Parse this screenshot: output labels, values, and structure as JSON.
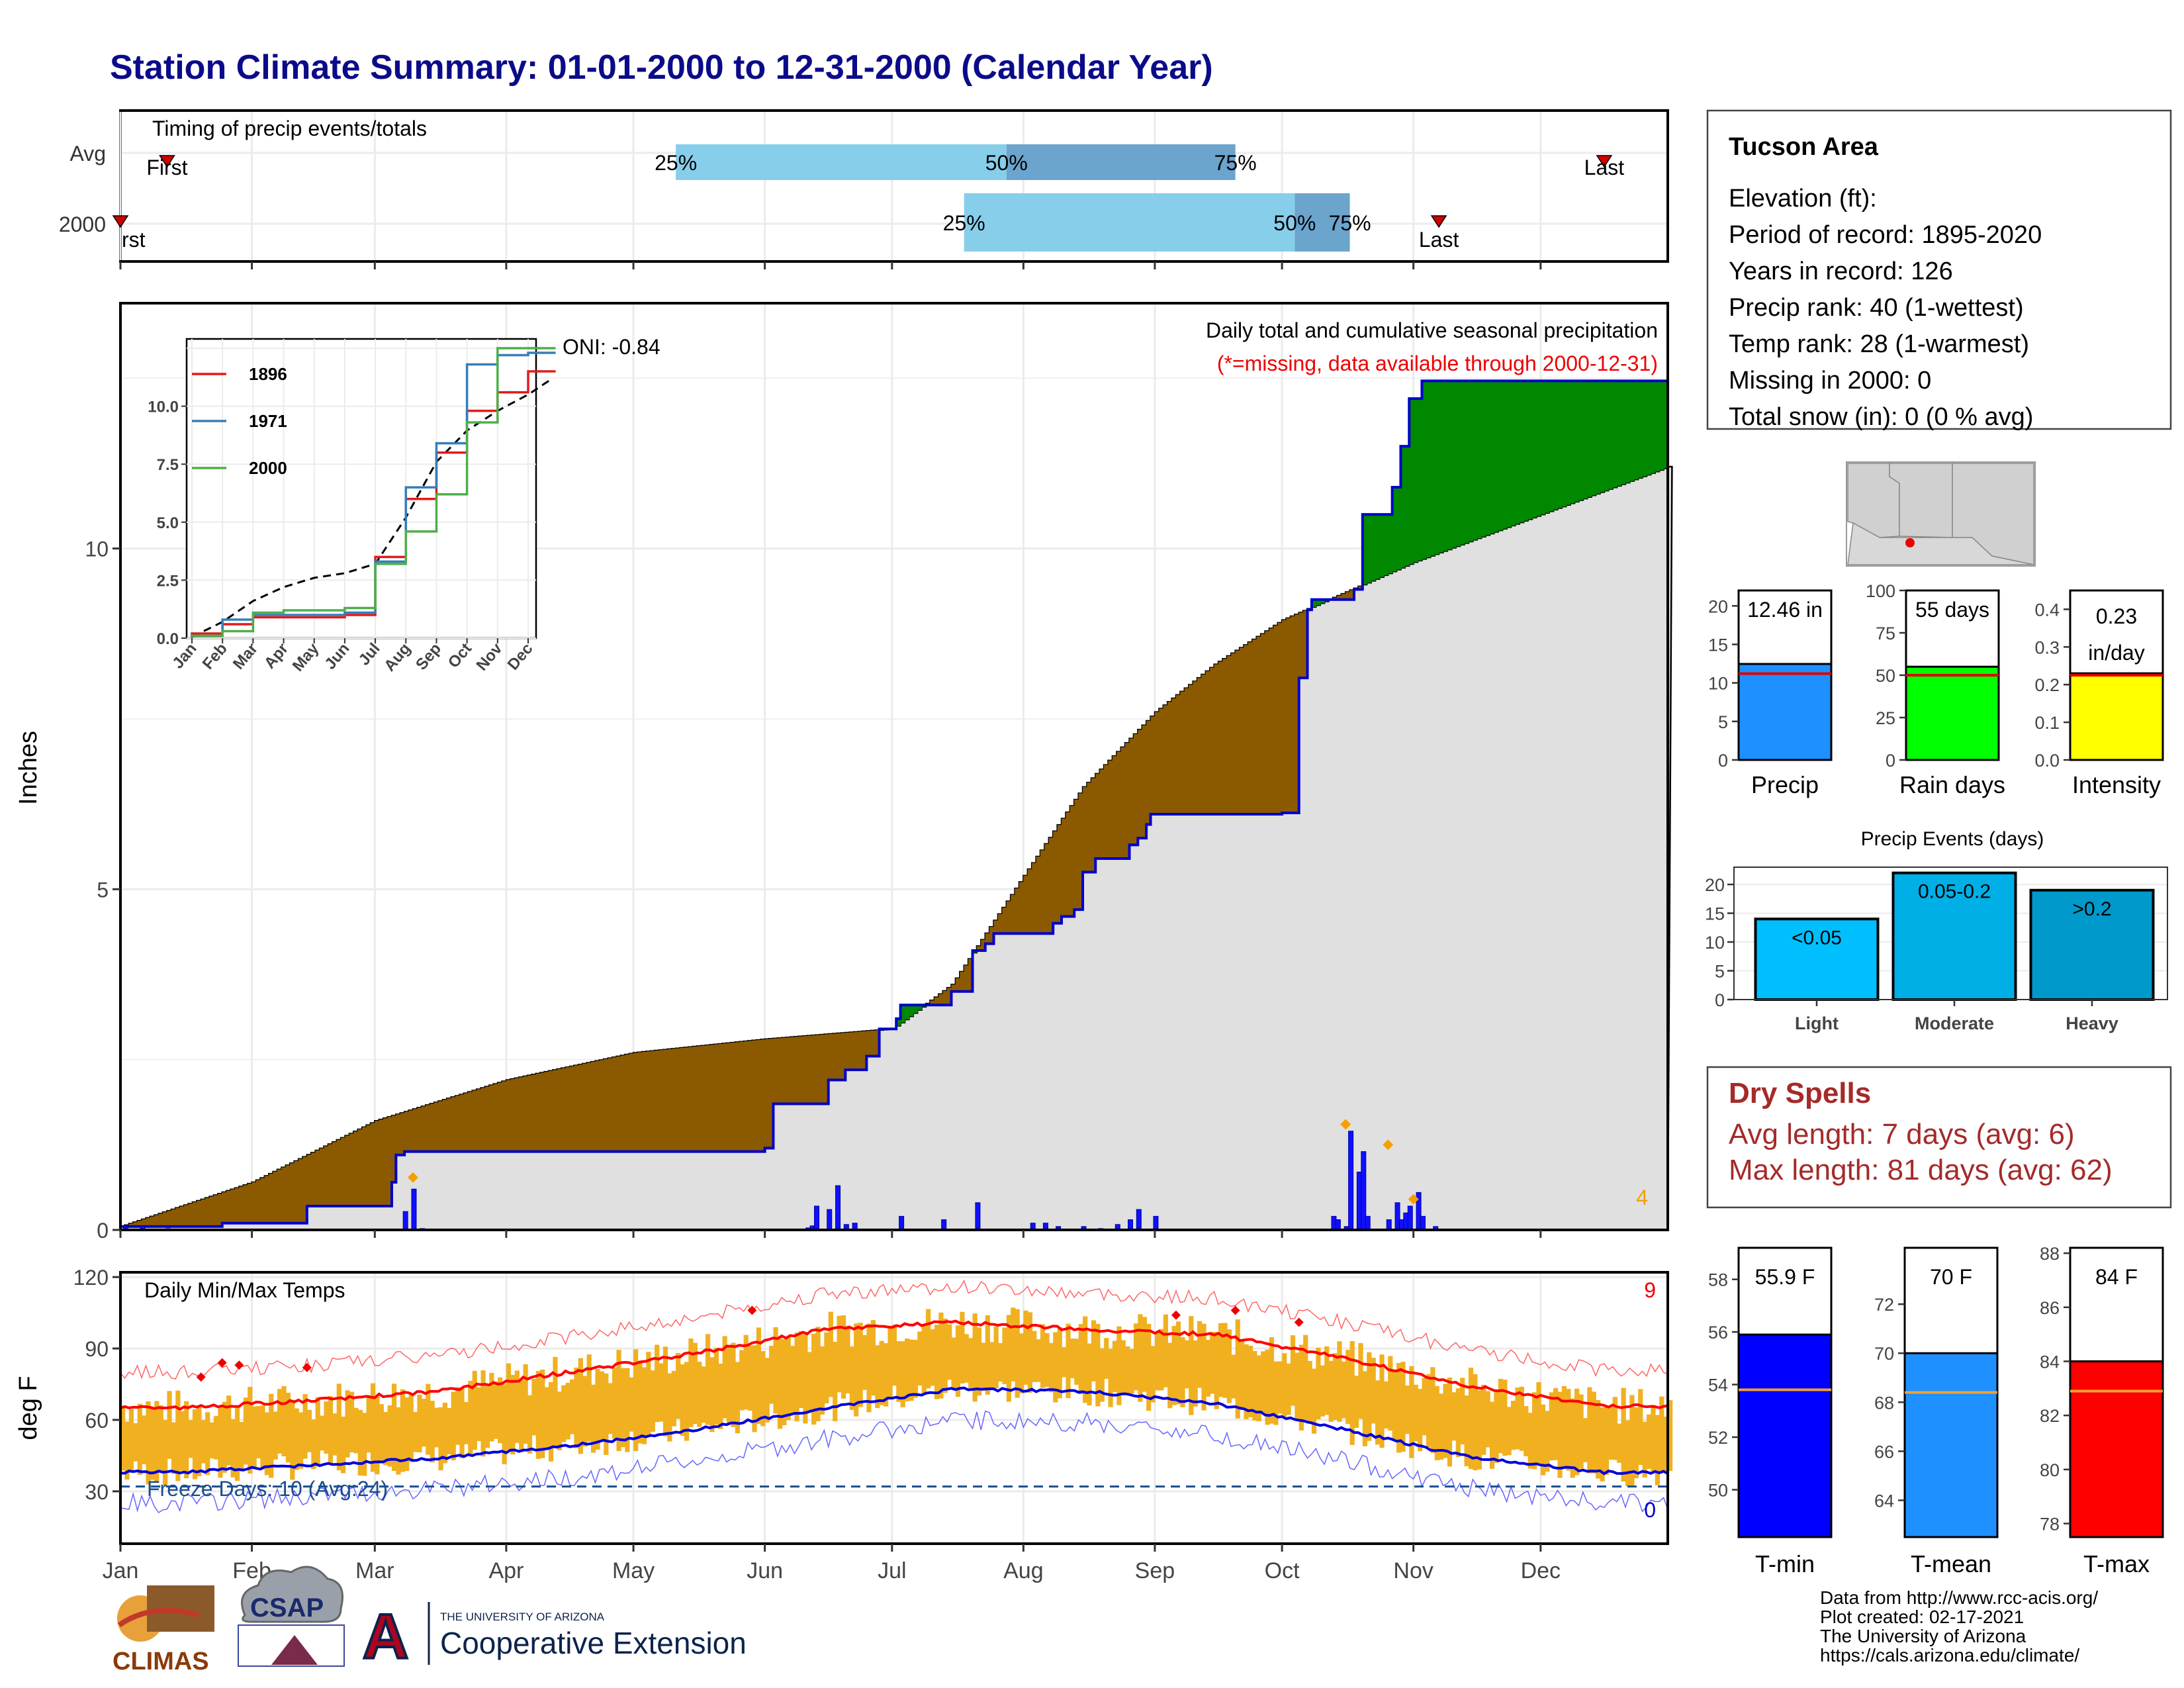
{
  "title": "Station Climate Summary: 01-01-2000 to 12-31-2000 (Calendar Year)",
  "timing": {
    "label": "Timing of precip events/totals",
    "rows": [
      "Avg",
      "2000"
    ],
    "first": "First",
    "last": "Last",
    "first_clipped": "rst",
    "p25": "25%",
    "p50": "50%",
    "p75": "75%",
    "avg": {
      "first_doy": 12,
      "p25_doy": 132,
      "p50_doy": 210,
      "p75_doy": 264,
      "last_doy": 351
    },
    "y2000": {
      "first_doy": 1,
      "p25_doy": 200,
      "p50_doy": 278,
      "p75_doy": 291,
      "last_doy": 312
    }
  },
  "main": {
    "ylabel": "Inches",
    "note": "Daily total and cumulative seasonal precipitation",
    "missing_note": "(*=missing, data available through 2000-12-31)",
    "oni": "ONI: -0.84",
    "extreme_count": "4",
    "yticks": [
      "0",
      "5",
      "10"
    ],
    "ylim": [
      0,
      13.6
    ],
    "colors": {
      "below_avg": "#8b5a00",
      "above_avg": "#008800",
      "cum_line": "#0000cc",
      "avg_fill": "#e0e0e0",
      "daily": "#1010ff"
    }
  },
  "inset": {
    "yticks": [
      "0.0",
      "2.5",
      "5.0",
      "7.5",
      "10.0"
    ],
    "months": [
      "Jan",
      "Feb",
      "Mar",
      "Apr",
      "May",
      "Jun",
      "Jul",
      "Aug",
      "Sep",
      "Oct",
      "Nov",
      "Dec"
    ],
    "legend": [
      {
        "name": "1896",
        "color": "#e31a1c"
      },
      {
        "name": "1971",
        "color": "#377eb8"
      },
      {
        "name": "2000",
        "color": "#4daf4a"
      }
    ]
  },
  "temps": {
    "label": "Daily Min/Max Temps",
    "ylabel": "deg F",
    "yticks": [
      "30",
      "60",
      "90",
      "120"
    ],
    "hot_count": "9",
    "cold_count": "0",
    "freeze": "Freeze Days: 10 (Avg:24)",
    "colors": {
      "bar": "#f0b020",
      "max_avg": "#ff0000",
      "min_avg": "#0000dd",
      "freeze_line": "#1a4d8f"
    }
  },
  "months": [
    "Jan",
    "Feb",
    "Mar",
    "Apr",
    "May",
    "Jun",
    "Jul",
    "Aug",
    "Sep",
    "Oct",
    "Nov",
    "Dec"
  ],
  "info": {
    "station": "Tucson Area",
    "lines": [
      "Elevation (ft):",
      "Period of record: 1895-2020",
      "Years in record: 126",
      "Precip rank: 40 (1-wettest)",
      "Temp rank: 28 (1-warmest)",
      "Missing in 2000: 0",
      "Total snow (in): 0 (0 % avg)"
    ]
  },
  "precip_bars": [
    {
      "label": "Precip",
      "value_text": "12.46 in",
      "value": 12.46,
      "avg": 11.2,
      "ymax": 22,
      "ticks": [
        "0",
        "5",
        "10",
        "15",
        "20"
      ],
      "tick_vals": [
        0,
        5,
        10,
        15,
        20
      ],
      "color": "#1e90ff"
    },
    {
      "label": "Rain days",
      "value_text": "55 days",
      "value": 55,
      "avg": 50,
      "ymax": 100,
      "ticks": [
        "0",
        "25",
        "50",
        "75",
        "100"
      ],
      "tick_vals": [
        0,
        25,
        50,
        75,
        100
      ],
      "color": "#00ff00"
    },
    {
      "label": "Intensity",
      "value_text": "0.23 in/day",
      "value_lines": [
        "0.23",
        "in/day"
      ],
      "value": 0.23,
      "avg": 0.225,
      "ymax": 0.45,
      "ticks": [
        "0.0",
        "0.1",
        "0.2",
        "0.3",
        "0.4"
      ],
      "tick_vals": [
        0,
        0.1,
        0.2,
        0.3,
        0.4
      ],
      "color": "#ffff00"
    }
  ],
  "events": {
    "title": "Precip Events (days)",
    "ticks": [
      "0",
      "5",
      "10",
      "15",
      "20"
    ],
    "bars": [
      {
        "label": "Light",
        "range": "<0.05",
        "value": 14,
        "color": "#00bfff"
      },
      {
        "label": "Moderate",
        "range": "0.05-0.2",
        "value": 22,
        "color": "#00afe6"
      },
      {
        "label": "Heavy",
        "range": ">0.2",
        "value": 19,
        "color": "#0099cc"
      }
    ]
  },
  "dry": {
    "title": "Dry Spells",
    "avg": "Avg length: 7 days (avg: 6)",
    "max": "Max length: 81 days (avg: 62)"
  },
  "temp_bars": [
    {
      "label": "T-min",
      "value_text": "55.9 F",
      "value": 55.9,
      "avg": 53.8,
      "ymin": 48.2,
      "ymax": 59.2,
      "ticks": [
        "50",
        "52",
        "54",
        "56",
        "58"
      ],
      "tick_vals": [
        50,
        52,
        54,
        56,
        58
      ],
      "color": "#0000ff"
    },
    {
      "label": "T-mean",
      "value_text": "70 F",
      "value": 70,
      "avg": 68.4,
      "ymin": 62.5,
      "ymax": 74.3,
      "ticks": [
        "64",
        "66",
        "68",
        "70",
        "72"
      ],
      "tick_vals": [
        64,
        66,
        68,
        70,
        72
      ],
      "color": "#1e90ff"
    },
    {
      "label": "T-max",
      "value_text": "84 F",
      "value": 84,
      "avg": 82.9,
      "ymin": 77.5,
      "ymax": 88.2,
      "ticks": [
        "78",
        "80",
        "82",
        "84",
        "86",
        "88"
      ],
      "tick_vals": [
        78,
        80,
        82,
        84,
        86,
        88
      ],
      "color": "#ff0000"
    }
  ],
  "footer": {
    "lines": [
      "Data from http://www.rcc-acis.org/",
      "Plot created: 02-17-2021",
      "The University of Arizona",
      "https://cals.arizona.edu/climate/"
    ],
    "climas": "CLIMAS",
    "csap": "CSAP",
    "ua_small": "THE UNIVERSITY OF ARIZONA",
    "ua_big": "Cooperative Extension"
  },
  "chart_data": [
    {
      "type": "area",
      "title": "Daily total and cumulative seasonal precipitation",
      "ylabel": "Inches",
      "ylim": [
        0,
        13.6
      ],
      "series": [
        {
          "name": "cumulative 2000",
          "x": [
            "01-01",
            "01-25",
            "02-14",
            "03-05",
            "03-06",
            "03-08",
            "06-01",
            "06-03",
            "06-16",
            "06-20",
            "06-25",
            "06-28",
            "07-02",
            "07-03",
            "07-15",
            "07-20",
            "07-23",
            "07-25",
            "08-08",
            "08-10",
            "08-13",
            "08-15",
            "08-18",
            "08-26",
            "08-28",
            "08-30",
            "08-31",
            "09-30",
            "10-01",
            "10-05",
            "10-07",
            "10-08",
            "10-18",
            "10-20",
            "10-27",
            "10-29",
            "10-31",
            "11-03",
            "11-30",
            "12-31"
          ],
          "values": [
            0.05,
            0.1,
            0.35,
            0.7,
            1.1,
            1.15,
            1.2,
            1.85,
            2.2,
            2.35,
            2.55,
            2.95,
            3.1,
            3.3,
            3.5,
            4.1,
            4.2,
            4.35,
            4.5,
            4.6,
            4.7,
            5.25,
            5.45,
            5.65,
            5.75,
            5.95,
            6.1,
            6.1,
            6.12,
            8.1,
            9.1,
            9.25,
            9.4,
            10.5,
            10.9,
            11.5,
            12.2,
            12.46,
            12.46,
            12.46
          ]
        },
        {
          "name": "average cumulative",
          "x": [
            "01-01",
            "02-01",
            "03-01",
            "04-01",
            "05-01",
            "06-01",
            "07-01",
            "07-15",
            "08-01",
            "08-15",
            "09-01",
            "09-15",
            "10-01",
            "11-01",
            "12-01",
            "12-31"
          ],
          "values": [
            0.05,
            0.7,
            1.6,
            2.2,
            2.6,
            2.8,
            2.95,
            3.6,
            5.2,
            6.5,
            7.6,
            8.3,
            8.95,
            9.8,
            10.5,
            11.2
          ]
        }
      ],
      "daily_events_in": [
        0.05,
        0.06,
        0.02,
        0.27,
        0.6,
        0.02,
        0.03,
        0.06,
        0.35,
        0.3,
        0.65,
        0.08,
        0.1,
        0.2,
        0.15,
        0.4,
        0.1,
        0.1,
        0.05,
        0.05,
        0.02,
        0.08,
        0.15,
        0.3,
        0.2,
        0.2,
        0.15,
        0.05,
        1.45,
        0.85,
        1.15,
        0.2,
        0.15,
        0.4,
        0.15,
        0.25,
        0.35,
        0.55,
        0.2,
        0.05
      ]
    },
    {
      "type": "line",
      "title": "Daily Min/Max Temps",
      "ylabel": "deg F",
      "ylim": [
        8,
        122
      ],
      "categories": [
        "Jan",
        "Feb",
        "Mar",
        "Apr",
        "May",
        "Jun",
        "Jul",
        "Aug",
        "Sep",
        "Oct",
        "Nov",
        "Dec"
      ],
      "series": [
        {
          "name": "avg max",
          "values": [
            65,
            68,
            72,
            80,
            88,
            98,
            101,
            98,
            96,
            86,
            74,
            66
          ]
        },
        {
          "name": "avg min",
          "values": [
            38,
            41,
            44,
            49,
            56,
            65,
            73,
            72,
            67,
            56,
            44,
            38
          ]
        }
      ]
    },
    {
      "type": "line",
      "categories": [
        "Jan",
        "Feb",
        "Mar",
        "Apr",
        "May",
        "Jun",
        "Jul",
        "Aug",
        "Sep",
        "Oct",
        "Nov",
        "Dec"
      ],
      "series": [
        {
          "name": "1896",
          "values": [
            0.2,
            0.6,
            0.9,
            0.9,
            0.9,
            1.0,
            3.5,
            6.0,
            8.0,
            9.8,
            10.6,
            11.5
          ]
        },
        {
          "name": "1971",
          "values": [
            0.1,
            0.8,
            1.0,
            1.0,
            1.0,
            1.1,
            3.3,
            6.5,
            8.4,
            11.8,
            12.2,
            12.3
          ]
        },
        {
          "name": "2000",
          "values": [
            0.1,
            0.3,
            1.1,
            1.2,
            1.2,
            1.3,
            3.2,
            4.6,
            6.2,
            9.3,
            12.5,
            12.5
          ]
        }
      ]
    },
    {
      "type": "bar",
      "title": "Precip Events (days)",
      "categories": [
        "Light",
        "Moderate",
        "Heavy"
      ],
      "values": [
        14,
        22,
        19
      ]
    }
  ]
}
